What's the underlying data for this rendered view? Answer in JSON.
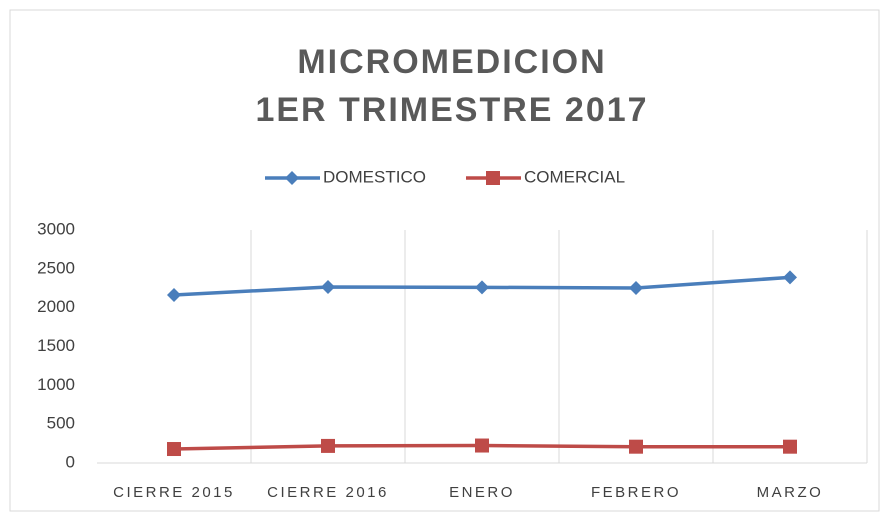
{
  "chart_data": {
    "type": "line",
    "title": [
      "MICROMEDICION",
      "1ER TRIMESTRE 2017"
    ],
    "categories": [
      "CIERRE 2015",
      "CIERRE 2016",
      "ENERO",
      "FEBRERO",
      "MARZO"
    ],
    "series": [
      {
        "name": "DOMESTICO",
        "color": "#4a7ebb",
        "marker": "diamond",
        "values": [
          2163,
          2266,
          2262,
          2253,
          2390
        ]
      },
      {
        "name": "COMERCIAL",
        "color": "#be4b48",
        "marker": "square",
        "values": [
          180,
          220,
          225,
          210,
          210
        ]
      }
    ],
    "ylim": [
      0,
      3000
    ],
    "yticks": [
      0,
      500,
      1000,
      1500,
      2000,
      2500,
      3000
    ],
    "grid": "x",
    "legend": "top"
  }
}
